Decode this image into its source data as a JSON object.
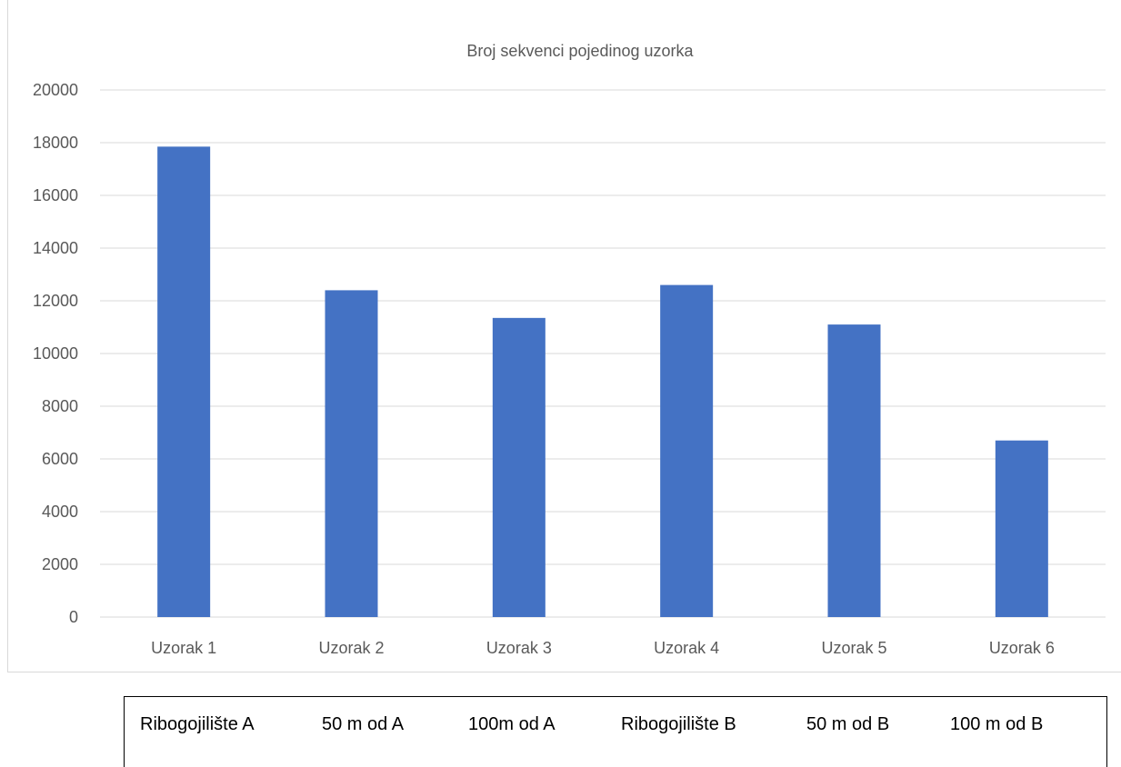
{
  "chart_data": {
    "type": "bar",
    "title": "Broj sekvenci pojedinog uzorka",
    "xlabel": "",
    "ylabel": "",
    "categories": [
      "Uzorak 1",
      "Uzorak 2",
      "Uzorak 3",
      "Uzorak 4",
      "Uzorak 5",
      "Uzorak 6"
    ],
    "values": [
      17850,
      12400,
      11350,
      12600,
      11100,
      6700
    ],
    "ylim": [
      0,
      20000
    ],
    "yticks": [
      "0",
      "2000",
      "4000",
      "6000",
      "8000",
      "10000",
      "12000",
      "14000",
      "16000",
      "18000",
      "20000"
    ],
    "grid": true,
    "legend": "none",
    "colors": {
      "bar": "#4472c4",
      "grid": "#d9d9d9",
      "text": "#595959"
    }
  },
  "legend_box": {
    "labels": [
      "Ribogojilište A",
      "50 m od A",
      "100m od A",
      "Ribogojilište B",
      "50 m od B",
      "100 m od B"
    ]
  }
}
